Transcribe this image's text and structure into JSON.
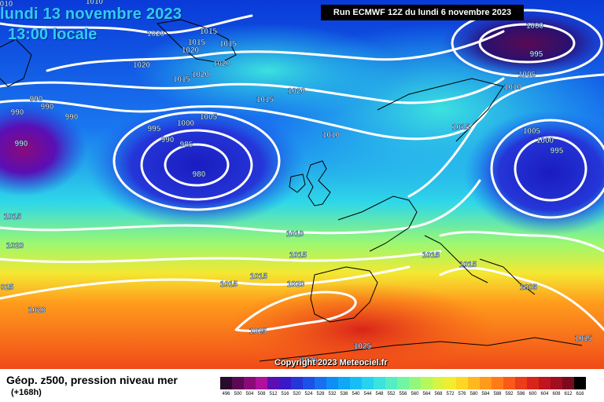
{
  "header": {
    "date_line": "lundi 13 novembre 2023",
    "time_line": "13:00 locale",
    "run_info": "Run ECMWF 12Z du lundi 6 novembre 2023",
    "top_left_fragments": [
      "010",
      "1010"
    ]
  },
  "copyright": "Copyright 2023 Meteociel.fr",
  "footer": {
    "product_title": "Géop. z500, pression niveau mer",
    "lead_time": "(+168h)"
  },
  "color_scale": {
    "values": [
      "496",
      "500",
      "504",
      "508",
      "512",
      "516",
      "520",
      "524",
      "528",
      "532",
      "536",
      "540",
      "544",
      "548",
      "552",
      "556",
      "560",
      "564",
      "568",
      "572",
      "576",
      "580",
      "584",
      "588",
      "592",
      "596",
      "600",
      "604",
      "608",
      "612",
      "616"
    ],
    "colors": [
      "#2a0a2e",
      "#5a0a52",
      "#8a0a7a",
      "#b0109c",
      "#5a0fb5",
      "#3a18c8",
      "#2536d8",
      "#1c50e6",
      "#1670f0",
      "#108ef5",
      "#0fa8f6",
      "#17bef6",
      "#28d2ef",
      "#3ce2de",
      "#55eec4",
      "#70f6a2",
      "#92f87c",
      "#b6f85a",
      "#d8f440",
      "#f2ec30",
      "#ffd624",
      "#ffb81e",
      "#ff9a1a",
      "#ff7b18",
      "#f95a18",
      "#ec3c18",
      "#d8241a",
      "#c0141e",
      "#a00e20",
      "#7c0a1c",
      "#000000"
    ]
  },
  "pressure_labels": [
    {
      "text": "1020"
    },
    {
      "text": "1015"
    },
    {
      "text": "1015"
    },
    {
      "text": "1020"
    },
    {
      "text": "1015"
    },
    {
      "text": "1020"
    },
    {
      "text": "1020"
    },
    {
      "text": "1015"
    },
    {
      "text": "1020"
    },
    {
      "text": "1015"
    },
    {
      "text": "1020"
    },
    {
      "text": "990"
    },
    {
      "text": "990"
    },
    {
      "text": "990"
    },
    {
      "text": "990"
    },
    {
      "text": "990"
    },
    {
      "text": "995"
    },
    {
      "text": "1000"
    },
    {
      "text": "1005"
    },
    {
      "text": "990"
    },
    {
      "text": "985"
    },
    {
      "text": "980"
    },
    {
      "text": "1010"
    },
    {
      "text": "1015"
    },
    {
      "text": "1000"
    },
    {
      "text": "995"
    },
    {
      "text": "1010"
    },
    {
      "text": "1005"
    },
    {
      "text": "1005"
    },
    {
      "text": "1000"
    },
    {
      "text": "995"
    },
    {
      "text": "1015"
    },
    {
      "text": "1020"
    },
    {
      "text": "1010"
    },
    {
      "text": "1015"
    },
    {
      "text": "1015"
    },
    {
      "text": "1015"
    },
    {
      "text": "1020"
    },
    {
      "text": "1015"
    },
    {
      "text": "1015"
    },
    {
      "text": "1005"
    },
    {
      "text": "025"
    },
    {
      "text": "1020"
    },
    {
      "text": "1025"
    },
    {
      "text": "1025"
    },
    {
      "text": "1015"
    },
    {
      "text": "1025"
    }
  ]
}
